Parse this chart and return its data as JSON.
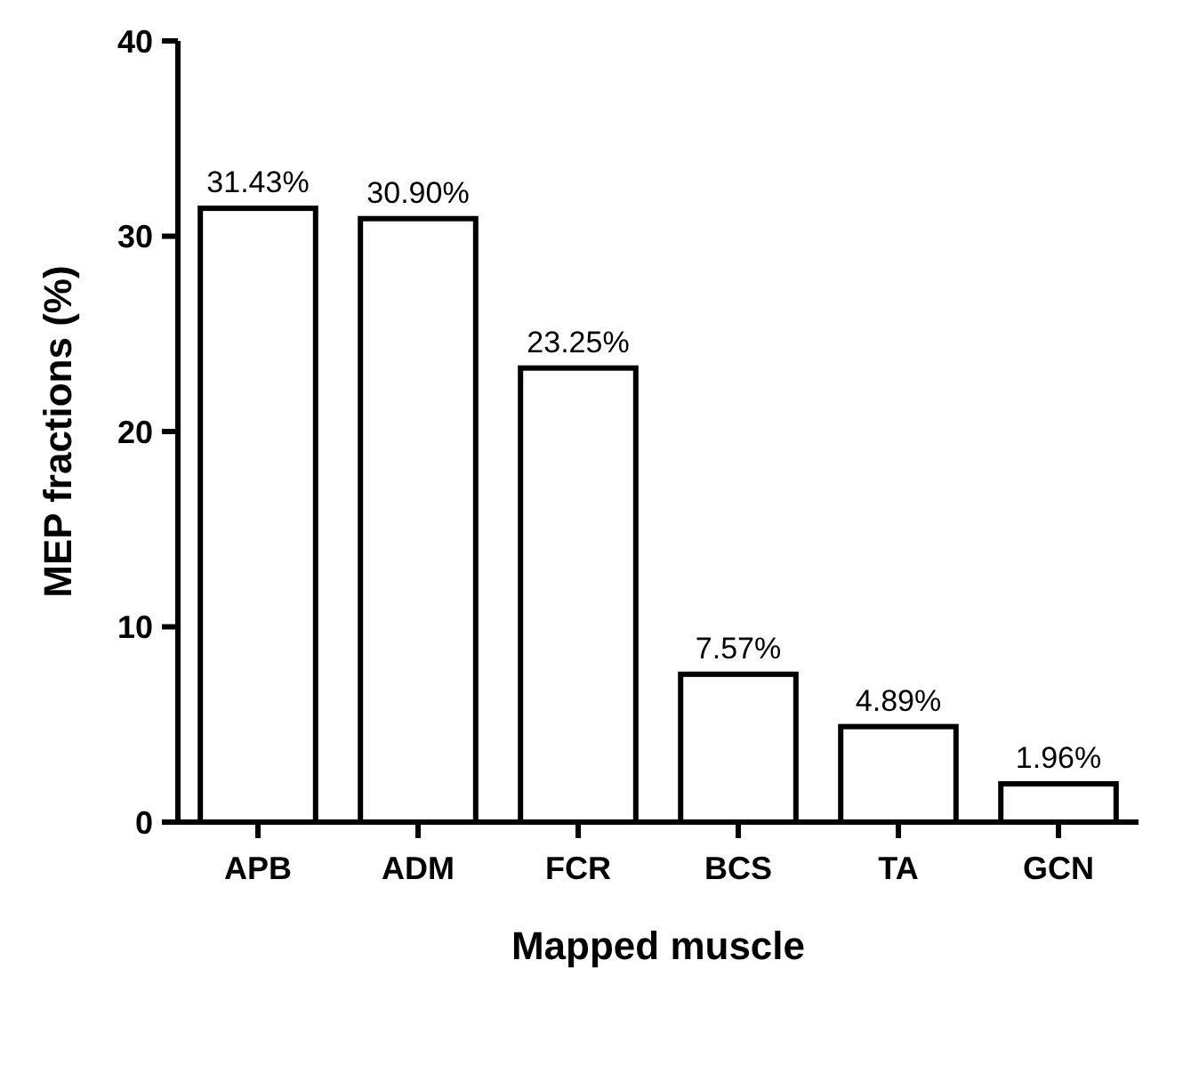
{
  "chart_data": {
    "type": "bar",
    "xlabel": "Mapped muscle",
    "ylabel": "MEP fractions (%)",
    "categories": [
      "APB",
      "ADM",
      "FCR",
      "BCS",
      "TA",
      "GCN"
    ],
    "values": [
      31.43,
      30.9,
      23.25,
      7.57,
      4.89,
      1.96
    ],
    "value_labels": [
      "31.43%",
      "30.90%",
      "23.25%",
      "7.57%",
      "4.89%",
      "1.96%"
    ],
    "color": "#ffffff",
    "ylim": [
      0,
      40
    ],
    "yticks": [
      0,
      10,
      20,
      30,
      40
    ],
    "grid": false
  }
}
